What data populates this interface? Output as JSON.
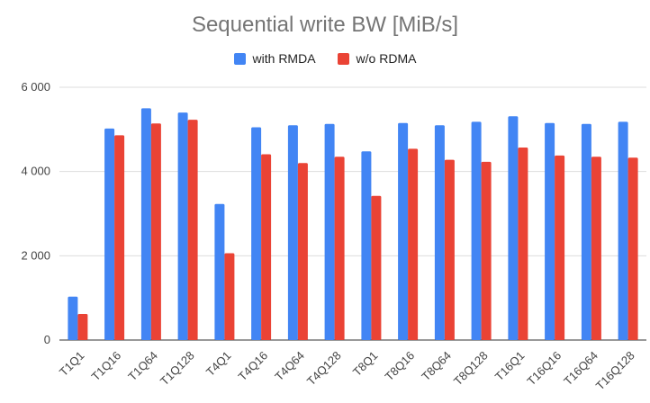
{
  "chart_data": {
    "type": "bar",
    "title": "Sequential write BW [MiB/s]",
    "xlabel": "",
    "ylabel": "",
    "ylim": [
      0,
      6000
    ],
    "yticks": [
      0,
      2000,
      4000,
      6000
    ],
    "ytick_labels": [
      "0",
      "2 000",
      "4 000",
      "6 000"
    ],
    "grid": true,
    "legend_position": "top",
    "categories": [
      "T1Q1",
      "T1Q16",
      "T1Q64",
      "T1Q128",
      "T4Q1",
      "T4Q16",
      "T4Q64",
      "T4Q128",
      "T8Q1",
      "T8Q16",
      "T8Q64",
      "T8Q128",
      "T16Q1",
      "T16Q16",
      "T16Q64",
      "T16Q128"
    ],
    "series": [
      {
        "name": "with RMDA",
        "color": "#4285f4",
        "values": [
          1030,
          5020,
          5500,
          5400,
          3230,
          5050,
          5100,
          5130,
          4480,
          5150,
          5100,
          5180,
          5310,
          5150,
          5130,
          5180
        ]
      },
      {
        "name": "w/o RDMA",
        "color": "#ea4335",
        "values": [
          620,
          4860,
          5140,
          5230,
          2060,
          4410,
          4200,
          4350,
          3420,
          4540,
          4280,
          4230,
          4570,
          4380,
          4350,
          4330
        ]
      }
    ]
  }
}
